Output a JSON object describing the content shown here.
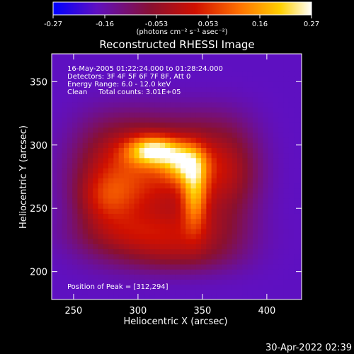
{
  "chart_data": {
    "type": "heatmap",
    "title": "Reconstructed RHESSI Image",
    "xlabel": "Heliocentric X (arcsec)",
    "ylabel": "Heliocentric Y (arcsec)",
    "xlim": [
      233,
      427
    ],
    "ylim": [
      178,
      372
    ],
    "x_ticks": [
      250,
      300,
      350,
      400
    ],
    "y_ticks": [
      200,
      250,
      300,
      350
    ],
    "colorbar": {
      "min": -0.27,
      "max": 0.27,
      "ticks": [
        "-0.27",
        "-0.16",
        "-0.053",
        "0.053",
        "0.16",
        "0.27"
      ],
      "unit_label": "(photons cm⁻² s⁻¹ asec⁻²)",
      "colormap": [
        "#0000ff",
        "#6010c0",
        "#8a1030",
        "#d01000",
        "#ff7000",
        "#ffd000",
        "#ffffff"
      ]
    },
    "annotations": [
      "16-May-2005 01:22:24.000 to 01:28:24.000",
      "Detectors: 3F 4F 5F 6F 7F 8F, Att 0",
      "Energy Range: 6.0 - 12.0 keV",
      "Clean     Total counts: 3.01E+05"
    ],
    "peak_label": "Position of Peak = [312,294]",
    "peak": [
      312,
      294
    ],
    "sources": [
      {
        "x": 312,
        "y": 296,
        "sx": 14,
        "sy": 8,
        "amp": 0.27
      },
      {
        "x": 336,
        "y": 286,
        "sx": 12,
        "sy": 11,
        "amp": 0.22
      },
      {
        "x": 344,
        "y": 262,
        "sx": 7,
        "sy": 20,
        "amp": 0.2
      },
      {
        "x": 295,
        "y": 280,
        "sx": 30,
        "sy": 22,
        "amp": 0.12
      },
      {
        "x": 275,
        "y": 258,
        "sx": 16,
        "sy": 14,
        "amp": 0.1
      },
      {
        "x": 370,
        "y": 280,
        "sx": 18,
        "sy": 22,
        "amp": 0.09
      },
      {
        "x": 310,
        "y": 230,
        "sx": 40,
        "sy": 12,
        "amp": 0.09
      },
      {
        "x": 330,
        "y": 212,
        "sx": 30,
        "sy": 10,
        "amp": 0.06
      }
    ],
    "background_level": -0.18
  },
  "timestamp": "30-Apr-2022 02:39"
}
